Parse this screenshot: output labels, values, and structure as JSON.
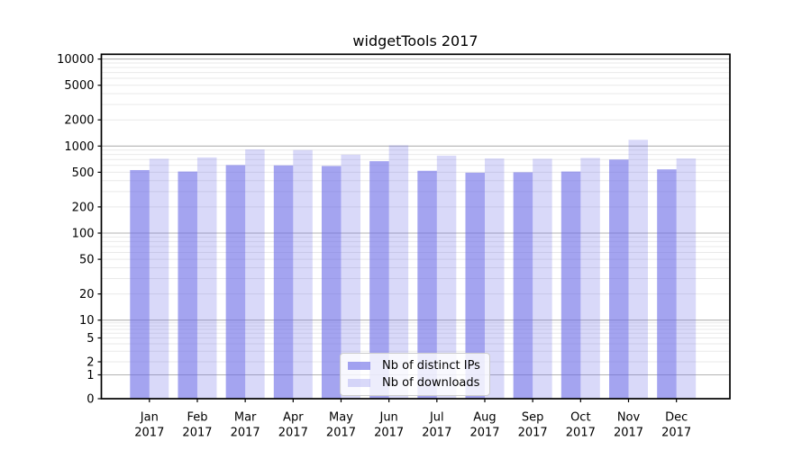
{
  "chart_data": {
    "type": "bar",
    "title": "widgetTools 2017",
    "categories": [
      "Jan",
      "Feb",
      "Mar",
      "Apr",
      "May",
      "Jun",
      "Jul",
      "Aug",
      "Sep",
      "Oct",
      "Nov",
      "Dec"
    ],
    "category_year": "2017",
    "series": [
      {
        "name": "Nb of distinct IPs",
        "color": "#6767e6",
        "alpha": 0.6,
        "values": [
          530,
          510,
          605,
          600,
          590,
          670,
          520,
          495,
          500,
          510,
          700,
          540
        ]
      },
      {
        "name": "Nb of downloads",
        "color": "#6767e6",
        "alpha": 0.25,
        "values": [
          715,
          740,
          915,
          900,
          795,
          1020,
          775,
          720,
          715,
          730,
          1180,
          720
        ]
      }
    ],
    "yticks": [
      10000,
      5000,
      2000,
      1000,
      500,
      200,
      100,
      50,
      20,
      10,
      5,
      2,
      1,
      0
    ],
    "ylim": [
      0,
      13000
    ],
    "yscale": "log-with-zero-baseline",
    "xlabel": "",
    "ylabel": "",
    "grid": true,
    "legend_position": "lower center",
    "colors": {
      "axis": "#000000",
      "major_grid": "#b3b3b3",
      "minor_grid": "#e9e9e9",
      "text": "#000000",
      "background": "#ffffff"
    }
  }
}
